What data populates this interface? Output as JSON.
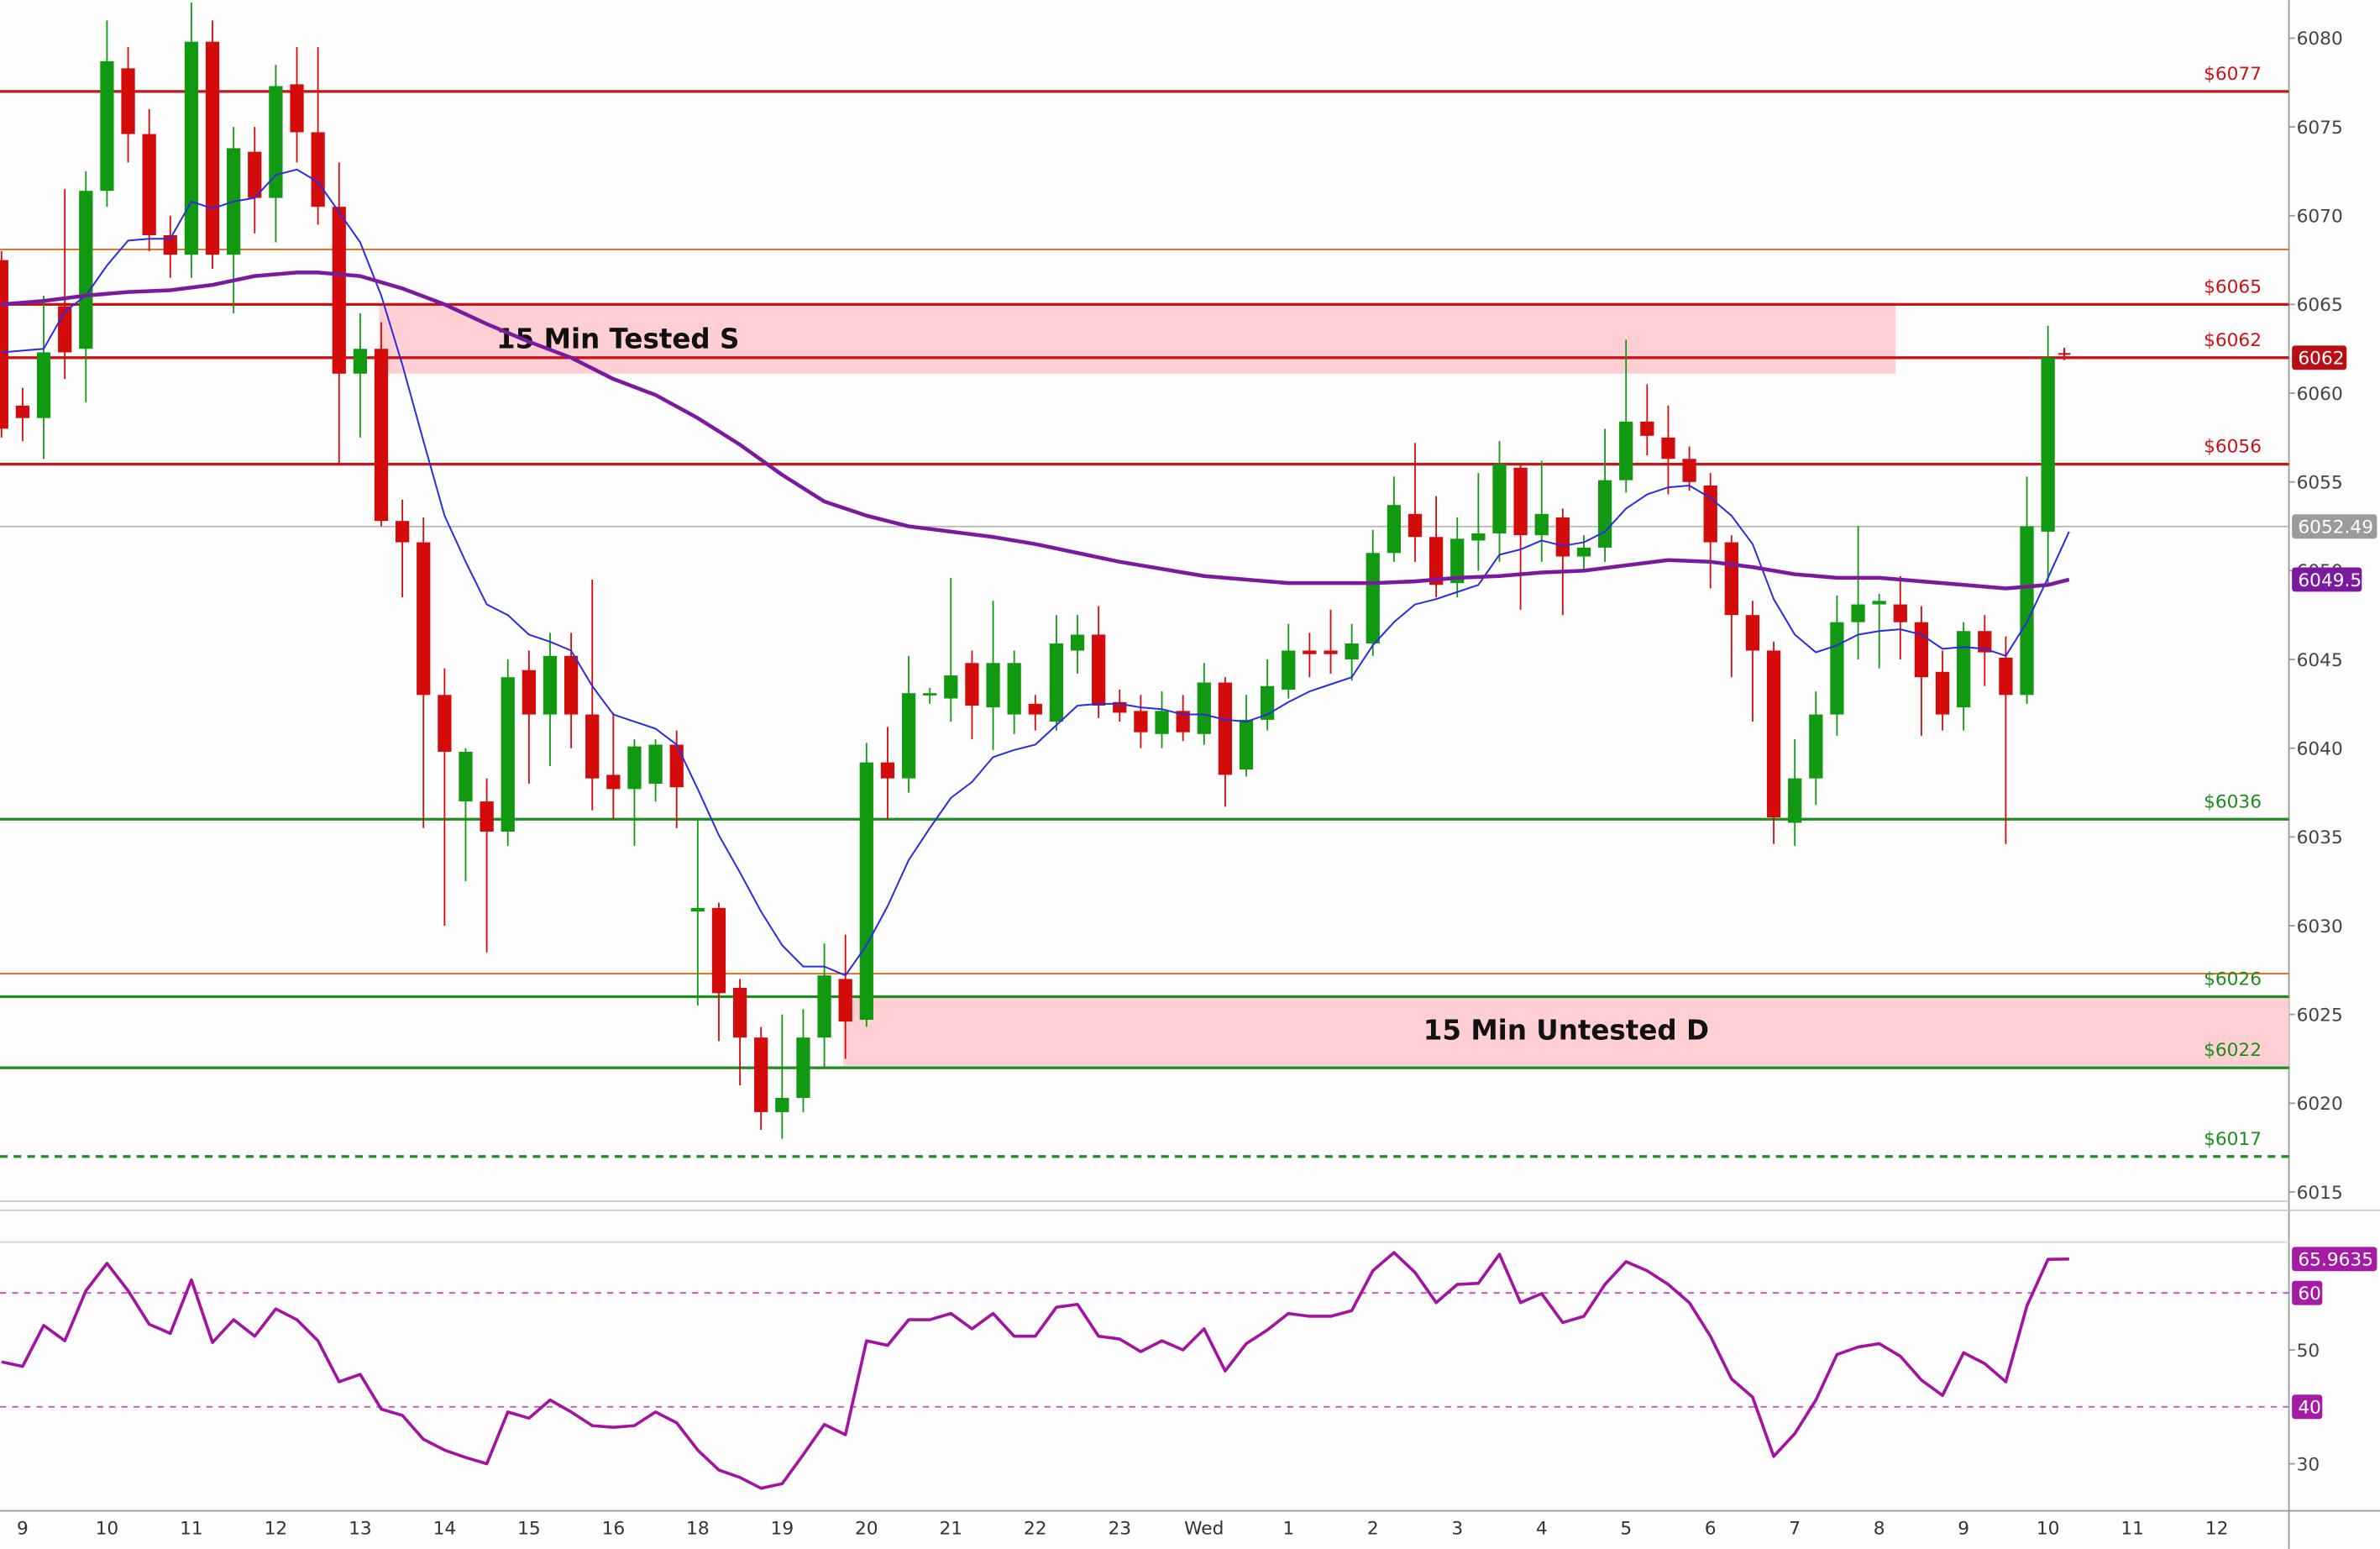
{
  "chart_data": [
    {
      "type": "candlestick",
      "categories": [
        null,
        "9",
        null,
        null,
        null,
        "10",
        null,
        null,
        null,
        "11",
        null,
        null,
        null,
        "12",
        null,
        null,
        null,
        "13",
        null,
        null,
        null,
        "14",
        null,
        null,
        null,
        "15",
        null,
        null,
        null,
        "16",
        null,
        null,
        null,
        "18",
        null,
        null,
        null,
        "19",
        null,
        null,
        null,
        "20",
        null,
        null,
        null,
        "21",
        null,
        null,
        null,
        "22",
        null,
        null,
        null,
        "23",
        null,
        null,
        null,
        "Wed",
        null,
        null,
        null,
        "1",
        null,
        null,
        null,
        "2",
        null,
        null,
        null,
        "3",
        null,
        null,
        null,
        "4",
        null,
        null,
        null,
        "5",
        null,
        null,
        null,
        "6",
        null,
        null,
        null,
        "7",
        null,
        null,
        null,
        "8",
        null,
        null,
        null,
        "9",
        null,
        null,
        null,
        "10",
        null,
        null,
        null,
        "11",
        null,
        null,
        null,
        "12"
      ],
      "open": [
        6067.5,
        6059.3,
        6058.6,
        6064.9,
        6062.5,
        6071.4,
        6078.3,
        6074.6,
        6068.9,
        6067.8,
        6079.8,
        6067.8,
        6073.6,
        6071,
        6077.4,
        6074.7,
        6070.5,
        6061.1,
        6062.5,
        6052.8,
        6051.6,
        6043,
        6037,
        6037,
        6035.3,
        6044.4,
        6041.9,
        6045.2,
        6041.9,
        6038.5,
        6037.7,
        6038,
        6040.2,
        6030.8,
        6031,
        6026.5,
        6023.7,
        6019.5,
        6020.3,
        6023.7,
        6027,
        6024.7,
        6039.2,
        6038.3,
        6043,
        6042.8,
        6044.8,
        6042.3,
        6041.9,
        6042.5,
        6041.5,
        6045.5,
        6046.4,
        6042.6,
        6042.1,
        6040.8,
        6042.1,
        6040.8,
        6043.7,
        6038.8,
        6041.6,
        6043.3,
        6045.5,
        6045.5,
        6045,
        6045.9,
        6051,
        6053.2,
        6051.9,
        6049.3,
        6051.7,
        6052.1,
        6055.8,
        6052,
        6053,
        6050.8,
        6051.3,
        6055.1,
        6058.4,
        6057.5,
        6056.3,
        6054.8,
        6051.6,
        6047.5,
        6045.5,
        6035.8,
        6038.3,
        6041.9,
        6047.1,
        6048.1,
        6048.1,
        6047.1,
        6044.3,
        6042.3,
        6046.6,
        6045.1,
        6043,
        6052.2,
        null,
        null,
        null,
        null,
        null,
        null,
        null,
        null
      ],
      "high": [
        6068,
        6060.3,
        6065.5,
        6071.5,
        6072.5,
        6081,
        6079.5,
        6076,
        6070,
        6082,
        6081,
        6075,
        6075,
        6078.5,
        6079.5,
        6079.5,
        6073,
        6064.5,
        6064,
        6054,
        6053,
        6044.5,
        6040,
        6038.3,
        6045,
        6045.5,
        6046.5,
        6046.5,
        6049.5,
        6042,
        6040.5,
        6040.5,
        6041,
        6036,
        6031.3,
        6027,
        6024.3,
        6025,
        6025.3,
        6029,
        6029.5,
        6040.3,
        6041.2,
        6045.2,
        6043.4,
        6049.6,
        6045.5,
        6048.3,
        6045.5,
        6043,
        6047.5,
        6047.5,
        6048,
        6043.3,
        6043,
        6043.2,
        6043,
        6044.8,
        6044,
        6043,
        6045,
        6047,
        6046.5,
        6047.8,
        6047,
        6052.3,
        6055.3,
        6057.2,
        6054.2,
        6053,
        6055.5,
        6057.3,
        6056,
        6056.2,
        6053.5,
        6052,
        6058,
        6063,
        6060.5,
        6059.3,
        6057,
        6055.5,
        6052,
        6048.3,
        6046,
        6040.5,
        6043.2,
        6048.6,
        6052.5,
        6048.7,
        6049.7,
        6048,
        6045.5,
        6047.1,
        6047.5,
        6046.3,
        6055.3,
        6063.8,
        null,
        null,
        null,
        null,
        null,
        null,
        null,
        null
      ],
      "low": [
        6057.5,
        6057.3,
        6056.3,
        6060.8,
        6059.5,
        6070.5,
        6073,
        6068,
        6066.5,
        6066.5,
        6067,
        6064.5,
        6069,
        6068.5,
        6073,
        6069.5,
        6056,
        6057.5,
        6052.5,
        6048.5,
        6035.5,
        6030,
        6032.5,
        6028.5,
        6034.5,
        6038,
        6039,
        6040,
        6036.5,
        6036,
        6034.5,
        6037,
        6035.5,
        6025.5,
        6023.5,
        6021,
        6018.5,
        6018,
        6019.5,
        6022,
        6022.5,
        6024.3,
        6036,
        6037.5,
        6042.5,
        6041.5,
        6040.5,
        6039.9,
        6040.8,
        6041,
        6041,
        6044.2,
        6041.7,
        6041.5,
        6040,
        6040,
        6040.4,
        6040.2,
        6036.7,
        6038.4,
        6041,
        6042.8,
        6044,
        6044.2,
        6043.8,
        6045.2,
        6050.5,
        6050.5,
        6048.5,
        6048.5,
        6050,
        6050.5,
        6047.8,
        6050.5,
        6047.5,
        6050,
        6050.5,
        6054.4,
        6056.5,
        6054.3,
        6054.5,
        6049,
        6044,
        6041.5,
        6034.6,
        6034.5,
        6036.8,
        6040.7,
        6045,
        6044.5,
        6045,
        6040.7,
        6041,
        6041,
        6043.5,
        6034.6,
        6042.5,
        6049.3,
        null,
        null,
        null,
        null,
        null,
        null,
        null,
        null
      ],
      "close": [
        6058,
        6058.6,
        6062.3,
        6062.3,
        6071.4,
        6078.7,
        6074.6,
        6068.9,
        6067.8,
        6079.8,
        6067.8,
        6073.8,
        6071,
        6077.3,
        6074.7,
        6070.5,
        6061.1,
        6062.5,
        6052.8,
        6051.6,
        6043,
        6039.8,
        6039.8,
        6035.3,
        6044,
        6041.9,
        6045.2,
        6041.9,
        6038.3,
        6037.7,
        6040.1,
        6040.2,
        6037.8,
        6031,
        6026.2,
        6023.7,
        6019.5,
        6020.3,
        6023.7,
        6027.2,
        6024.6,
        6039.2,
        6038.3,
        6043.1,
        6043.1,
        6044.1,
        6042.4,
        6044.8,
        6044.8,
        6041.9,
        6045.9,
        6046.4,
        6042.4,
        6042,
        6040.9,
        6042.1,
        6040.9,
        6043.7,
        6038.5,
        6041.6,
        6043.5,
        6045.5,
        6045.3,
        6045.3,
        6045.9,
        6051,
        6053.7,
        6051.9,
        6049.2,
        6051.8,
        6052.1,
        6056,
        6052,
        6053.2,
        6050.8,
        6051.3,
        6055.1,
        6058.4,
        6057.6,
        6056.3,
        6055,
        6051.6,
        6047.5,
        6045.5,
        6036.1,
        6038.3,
        6041.9,
        6047.1,
        6048.1,
        6048.3,
        6047.1,
        6044,
        6041.9,
        6046.6,
        6045.4,
        6043,
        6052.5,
        6062,
        null,
        null,
        null,
        null,
        null,
        null,
        null,
        null
      ],
      "up_color": "#119a11",
      "down_color": "#d40b0b",
      "xlim": [
        -0.072,
        108.42
      ],
      "ylim": [
        6014.57,
        6082.14
      ],
      "yticks": [
        6015,
        6020,
        6025,
        6030,
        6035,
        6040,
        6045,
        6050,
        6055,
        6060,
        6065,
        6070,
        6075,
        6080
      ],
      "series": [
        {
          "color": "#2b2be0",
          "x": [
            0,
            1,
            2,
            3,
            4,
            5,
            6,
            7,
            8,
            9,
            10,
            11,
            12,
            13,
            14,
            15,
            16,
            17,
            18,
            19,
            20,
            21,
            22,
            23,
            24,
            25,
            26,
            27,
            28,
            29,
            30,
            31,
            32,
            33,
            34,
            35,
            36,
            37,
            38,
            39,
            40,
            41,
            42,
            43,
            44,
            45,
            46,
            47,
            48,
            49,
            50,
            51,
            52,
            53,
            54,
            55,
            56,
            57,
            58,
            59,
            60,
            61,
            62,
            63,
            64,
            65,
            66,
            67,
            68,
            69,
            70,
            71,
            72,
            73,
            74,
            75,
            76,
            77,
            78,
            79,
            80,
            81,
            82,
            83,
            84,
            85,
            86,
            87,
            88,
            89,
            90,
            91,
            92,
            93,
            94,
            95,
            96,
            97,
            98
          ],
          "values": [
            6062.3,
            6062.4,
            6062.5,
            6064.6,
            6065.5,
            6067.2,
            6068.6,
            6068.7,
            6068.7,
            6070.8,
            6070.4,
            6070.8,
            6071,
            6072.3,
            6072.6,
            6071.9,
            6070.2,
            6068.5,
            6065.5,
            6061.6,
            6057.3,
            6053.1,
            6050.5,
            6048.1,
            6047.5,
            6046.4,
            6046,
            6045.5,
            6043.5,
            6041.9,
            6041.5,
            6041.1,
            6040.2,
            6037.7,
            6035.1,
            6033,
            6030.8,
            6028.9,
            6027.7,
            6027.7,
            6027.2,
            6028.9,
            6031.1,
            6033.7,
            6035.5,
            6037.2,
            6038.1,
            6039.5,
            6039.9,
            6040.2,
            6041.3,
            6042.4,
            6042.5,
            6042.5,
            6042.3,
            6042.2,
            6041.9,
            6041.9,
            6041.6,
            6041.5,
            6041.9,
            6042.6,
            6043.2,
            6043.6,
            6044,
            6045.8,
            6047.1,
            6048.1,
            6048.4,
            6048.8,
            6049.2,
            6050.9,
            6051.2,
            6051.7,
            6051.4,
            6051.6,
            6052.2,
            6053.5,
            6054.3,
            6054.7,
            6054.8,
            6054.1,
            6053.1,
            6051.5,
            6048.4,
            6046.4,
            6045.4,
            6045.8,
            6046.4,
            6046.6,
            6046.7,
            6046.4,
            6045.6,
            6045.7,
            6045.6,
            6045.2,
            6047.1,
            6049.6,
            6052.2
          ]
        },
        {
          "color": "#7a1a9e",
          "x": [
            0,
            2,
            4,
            6,
            8,
            10,
            12,
            14,
            15,
            17,
            19,
            21,
            23,
            25,
            27,
            29,
            31,
            33,
            35,
            37,
            39,
            41,
            43,
            45,
            47,
            49,
            51,
            53,
            55,
            57,
            59,
            61,
            63,
            65,
            67,
            69,
            71,
            73,
            75,
            77,
            79,
            81,
            83,
            85,
            87,
            89,
            91,
            93,
            95,
            97,
            98
          ],
          "values": [
            6065,
            6065.2,
            6065.5,
            6065.7,
            6065.8,
            6066.1,
            6066.6,
            6066.8,
            6066.8,
            6066.6,
            6065.9,
            6065,
            6063.9,
            6062.9,
            6062,
            6060.8,
            6059.9,
            6058.6,
            6057.1,
            6055.4,
            6053.9,
            6053.1,
            6052.5,
            6052.2,
            6051.9,
            6051.5,
            6051,
            6050.5,
            6050.1,
            6049.7,
            6049.5,
            6049.3,
            6049.3,
            6049.3,
            6049.4,
            6049.6,
            6049.7,
            6049.9,
            6050,
            6050.3,
            6050.6,
            6050.5,
            6050.2,
            6049.8,
            6049.6,
            6049.6,
            6049.4,
            6049.2,
            6049,
            6049.2,
            6049.5
          ]
        }
      ],
      "levels": [
        {
          "value": 6077,
          "label": "$6077",
          "color": "#c9131b"
        },
        {
          "value": 6068.1,
          "color": "#e06a16"
        },
        {
          "value": 6065,
          "label": "$6065",
          "color": "#c9131b"
        },
        {
          "value": 6062,
          "label": "$6062",
          "color": "#c9131b"
        },
        {
          "value": 6056,
          "label": "$6056",
          "color": "#c9131b"
        },
        {
          "value": 6036,
          "label": "$6036",
          "color": "#1e8c1e"
        },
        {
          "value": 6027.3,
          "color": "#e06a16"
        },
        {
          "value": 6026,
          "label": "$6026",
          "color": "#1e8c1e"
        },
        {
          "value": 6022,
          "label": "$6022",
          "color": "#1e8c1e"
        },
        {
          "value": 6017,
          "label": "$6017",
          "color": "#1e8c1e",
          "dashed": true
        }
      ],
      "zones": [
        {
          "label": "15 Min Tested S",
          "from": 6061.1,
          "to": 6065,
          "x_start": 17.9,
          "x_end": 89.78
        },
        {
          "label": "15 Min Untested D",
          "from": 6022.1,
          "to": 6026.1,
          "x_start": 39.9
        }
      ],
      "last_price": 6052.49
    },
    {
      "type": "line",
      "x": [
        0,
        1,
        2,
        3,
        4,
        5,
        6,
        7,
        8,
        9,
        10,
        11,
        12,
        13,
        14,
        15,
        16,
        17,
        18,
        19,
        20,
        21,
        22,
        23,
        24,
        25,
        26,
        27,
        28,
        29,
        30,
        31,
        32,
        33,
        34,
        35,
        36,
        37,
        38,
        39,
        40,
        41,
        42,
        43,
        44,
        45,
        46,
        47,
        48,
        49,
        50,
        51,
        52,
        53,
        54,
        55,
        56,
        57,
        58,
        59,
        60,
        61,
        62,
        63,
        64,
        65,
        66,
        67,
        68,
        69,
        70,
        71,
        72,
        73,
        74,
        75,
        76,
        77,
        78,
        79,
        80,
        81,
        82,
        83,
        84,
        85,
        86,
        87,
        88,
        89,
        90,
        91,
        92,
        93,
        94,
        95,
        96,
        97,
        98
      ],
      "values": [
        47.9,
        47.1,
        54.3,
        51.6,
        60.4,
        65.2,
        60.4,
        54.5,
        52.9,
        62.3,
        51.3,
        55.3,
        52.4,
        57.2,
        55.3,
        51.6,
        44.4,
        45.7,
        39.6,
        38.5,
        34.3,
        32.4,
        31.1,
        30,
        39.1,
        38,
        41.2,
        39.1,
        36.7,
        36.4,
        36.7,
        39.1,
        37.2,
        32.4,
        28.9,
        27.6,
        25.7,
        26.5,
        31.6,
        36.9,
        35.1,
        51.6,
        50.8,
        55.3,
        55.3,
        56.4,
        53.7,
        56.4,
        52.4,
        52.4,
        57.5,
        58,
        52.4,
        51.9,
        49.7,
        51.6,
        50,
        53.7,
        46.3,
        51.1,
        53.5,
        56.4,
        55.9,
        55.9,
        56.9,
        63.9,
        67.1,
        63.6,
        58.3,
        61.5,
        61.7,
        66.8,
        58.3,
        59.9,
        54.8,
        55.9,
        61.5,
        65.5,
        63.9,
        61.5,
        58.3,
        52.4,
        44.9,
        41.7,
        31.3,
        35.3,
        41.2,
        49.2,
        50.5,
        51.1,
        48.9,
        44.7,
        42,
        49.5,
        47.6,
        44.4,
        57.7,
        65.9,
        65.9635
      ],
      "color": "#a3139f",
      "xlim": [
        -0.072,
        108.42
      ],
      "ylim": [
        21.73,
        68.93
      ],
      "yticks": [
        30,
        50
      ],
      "levels": [
        40,
        60
      ]
    }
  ]
}
